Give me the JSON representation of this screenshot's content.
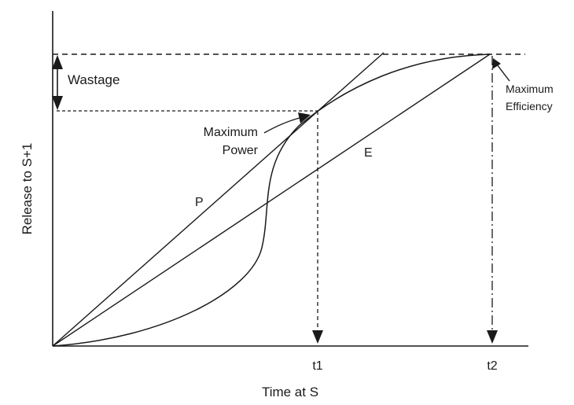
{
  "axes": {
    "x_label": "Time at S",
    "y_label": "Release to S+1"
  },
  "ticks": {
    "t1": "t1",
    "t2": "t2"
  },
  "annotations": {
    "wastage": "Wastage",
    "max_power_line1": "Maximum",
    "max_power_line2": "Power",
    "max_efficiency_line1": "Maximum",
    "max_efficiency_line2": "Efficiency"
  },
  "curves": {
    "p_label": "P",
    "e_label": "E"
  },
  "colors": {
    "ink": "#1a1a1a",
    "background": "#ffffff"
  }
}
